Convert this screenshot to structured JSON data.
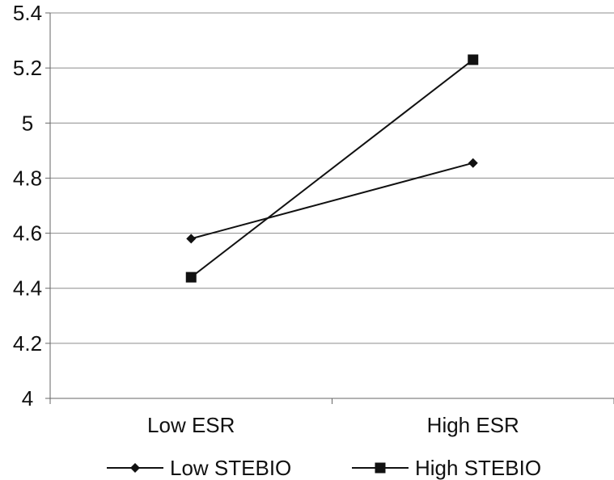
{
  "chart_data": {
    "type": "line",
    "categories": [
      "Low ESR",
      "High ESR"
    ],
    "ylim": [
      4,
      5.4
    ],
    "yticks": [
      "4",
      "4.2",
      "4.4",
      "4.6",
      "4.8",
      "5",
      "5.2",
      "5.4"
    ],
    "grid": true,
    "legend_position": "bottom",
    "series": [
      {
        "name": "Low STEBIO",
        "marker": "diamond",
        "values": [
          4.58,
          4.855
        ]
      },
      {
        "name": "High STEBIO",
        "marker": "square",
        "values": [
          4.44,
          5.23
        ]
      }
    ],
    "colors": {
      "line": "#111111",
      "grid": "#8c8c8c",
      "axis": "#666666"
    }
  }
}
